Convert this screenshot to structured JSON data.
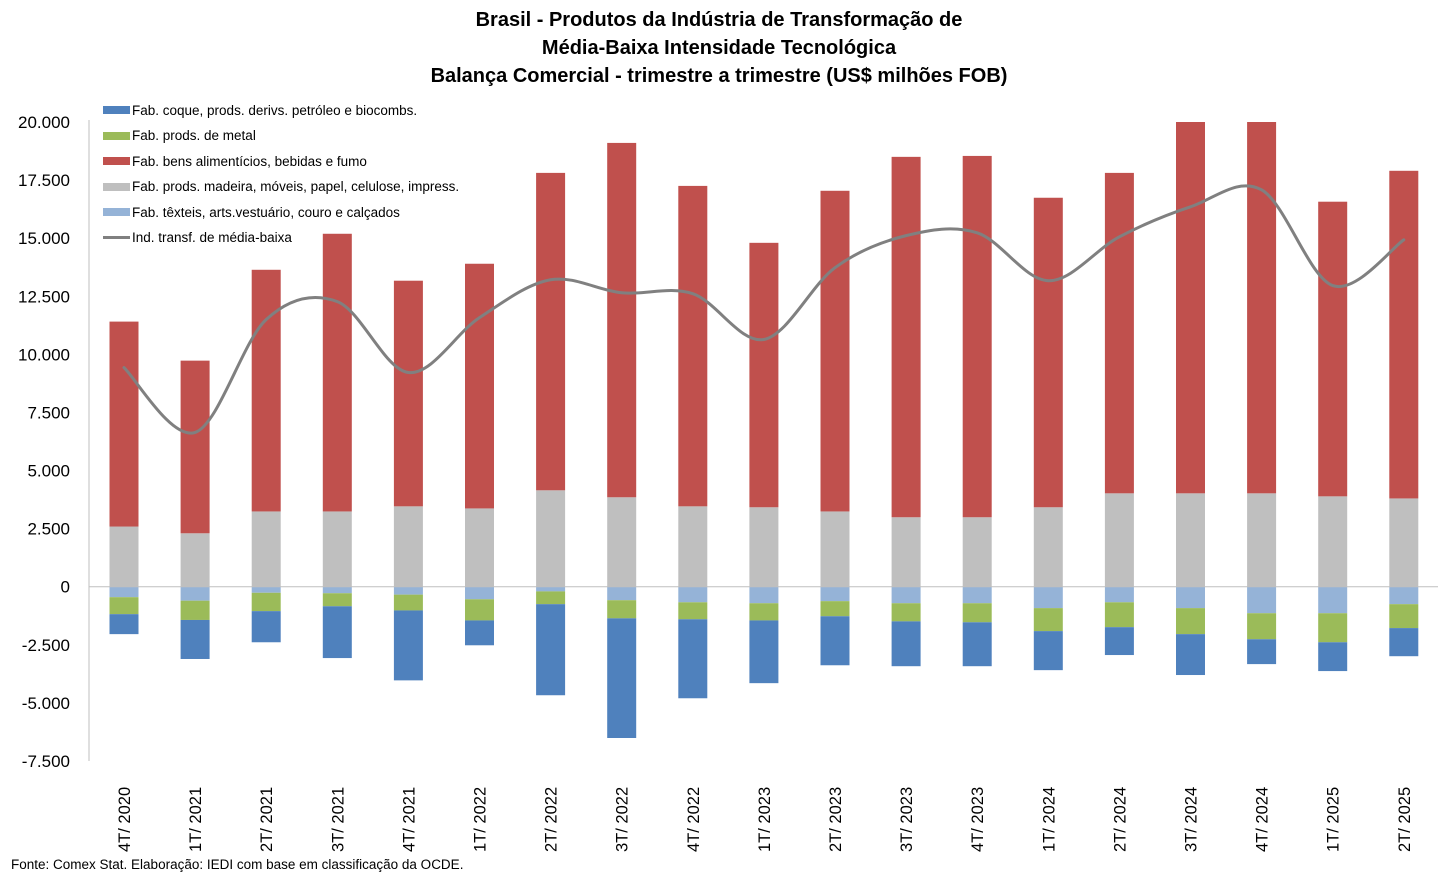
{
  "chart_data": {
    "type": "bar",
    "subtype": "stacked-bar-with-line",
    "title": [
      "Brasil - Produtos da Indústria de Transformação de",
      "Média-Baixa Intensidade Tecnológica",
      "Balança Comercial - trimestre a trimestre (US$ milhões FOB)"
    ],
    "xlabel": "",
    "ylabel": "",
    "ylim": [
      -7500,
      20000
    ],
    "yticks": [
      20000,
      17500,
      15000,
      12500,
      10000,
      7500,
      5000,
      2500,
      0,
      -2500,
      -5000,
      -7500
    ],
    "ytick_labels": [
      "20.000",
      "17.500",
      "15.000",
      "12.500",
      "10.000",
      "7.500",
      "5.000",
      "2.500",
      "0",
      "-2.500",
      "-5.000",
      "-7.500"
    ],
    "grid": false,
    "legend_position": "top-left",
    "categories": [
      "4T/ 2020",
      "1T/ 2021",
      "2T/ 2021",
      "3T/ 2021",
      "4T/ 2021",
      "1T/ 2022",
      "2T/ 2022",
      "3T/ 2022",
      "4T/ 2022",
      "1T/ 2023",
      "2T/ 2023",
      "3T/ 2023",
      "4T/ 2023",
      "1T/ 2024",
      "2T/ 2024",
      "3T/ 2024",
      "4T/ 2024",
      "1T/ 2025",
      "2T/ 2025"
    ],
    "series": [
      {
        "name": "Fab. coque, prods. derivs. petróleo e biocombs.",
        "kind": "bar",
        "color": "#4f81bd",
        "values": [
          -860,
          -1680,
          -1340,
          -2230,
          -3010,
          -1070,
          -3920,
          -5150,
          -3400,
          -2700,
          -2110,
          -1930,
          -1890,
          -1680,
          -1200,
          -1760,
          -1070,
          -1240,
          -1210
        ]
      },
      {
        "name": "Fab. prods. de metal",
        "kind": "bar",
        "color": "#9bbb59",
        "values": [
          -730,
          -830,
          -790,
          -560,
          -680,
          -910,
          -550,
          -780,
          -730,
          -740,
          -650,
          -780,
          -820,
          -990,
          -1070,
          -1120,
          -1120,
          -1250,
          -1030
        ]
      },
      {
        "name": "Fab. bens alimentícios, bebidas e fumo",
        "kind": "bar",
        "color": "#c0504d",
        "values": [
          8820,
          7430,
          10400,
          11950,
          9710,
          10530,
          13660,
          15250,
          13790,
          11380,
          13800,
          15510,
          15550,
          13320,
          13790,
          15980,
          15980,
          12680,
          14100
        ]
      },
      {
        "name": "Fab. prods. madeira, móveis, papel, celulose, impress.",
        "kind": "bar",
        "color": "#bfbfbf",
        "values": [
          2590,
          2300,
          3240,
          3240,
          3460,
          3370,
          4150,
          3850,
          3460,
          3420,
          3240,
          2990,
          2990,
          3420,
          4020,
          4020,
          4020,
          3890,
          3800
        ]
      },
      {
        "name": "Fab. têxteis, arts.vestuário, couro e calçados",
        "kind": "bar",
        "color": "#95b3d7",
        "values": [
          -450,
          -600,
          -260,
          -280,
          -340,
          -540,
          -200,
          -580,
          -670,
          -710,
          -620,
          -710,
          -710,
          -920,
          -670,
          -920,
          -1140,
          -1140,
          -750
        ]
      },
      {
        "name": "Ind. transf. de média-baixa",
        "kind": "line",
        "smooth": true,
        "color": "#808080",
        "values": [
          9430,
          6640,
          11500,
          12270,
          9220,
          11580,
          13210,
          12650,
          12610,
          10640,
          13730,
          15110,
          15230,
          13170,
          15060,
          16350,
          17080,
          12960,
          14930
        ]
      }
    ]
  },
  "footer": {
    "source": "Fonte: Comex Stat. Elaboração: IEDI com base em classificação da OCDE."
  }
}
